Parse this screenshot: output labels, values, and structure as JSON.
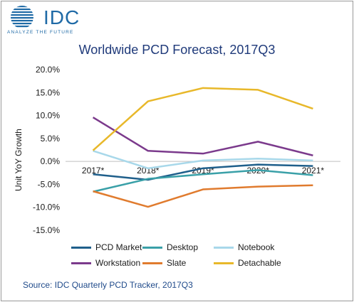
{
  "logo": {
    "brand": "IDC",
    "tagline": "ANALYZE THE FUTURE"
  },
  "source": "Source: IDC Quarterly PCD Tracker, 2017Q3",
  "chart_data": {
    "type": "line",
    "title": "Worldwide  PCD Forecast, 2017Q3",
    "ylabel": "Unit YoY Growth",
    "xlabel": "",
    "categories": [
      "2017*",
      "2018*",
      "2019*",
      "2020*",
      "2021*"
    ],
    "ylim": [
      -15,
      20
    ],
    "yticks": [
      -15,
      -10,
      -5,
      0,
      5,
      10,
      15,
      20
    ],
    "ytick_labels": [
      "-15.0%",
      "-10.0%",
      "-5.0%",
      "0.0%",
      "5.0%",
      "10.0%",
      "15.0%",
      "20.0%"
    ],
    "grid": false,
    "legend_position": "bottom",
    "series": [
      {
        "name": "PCD Market",
        "color": "#1f5f8b",
        "values": [
          -2.8,
          -4.0,
          -1.5,
          -0.7,
          -1.0
        ]
      },
      {
        "name": "Desktop",
        "color": "#3aa0a8",
        "values": [
          -6.6,
          -3.8,
          -2.8,
          -1.9,
          -3.0
        ]
      },
      {
        "name": "Notebook",
        "color": "#a8d8ea",
        "values": [
          2.3,
          -1.5,
          0.2,
          0.6,
          0.2
        ]
      },
      {
        "name": "Workstation",
        "color": "#7b3a8c",
        "values": [
          9.6,
          2.3,
          1.7,
          4.3,
          1.3
        ]
      },
      {
        "name": "Slate",
        "color": "#e07b2e",
        "values": [
          -6.5,
          -9.9,
          -6.1,
          -5.5,
          -5.2
        ]
      },
      {
        "name": "Detachable",
        "color": "#e8b82a",
        "values": [
          2.4,
          13.1,
          16.0,
          15.6,
          11.5
        ]
      }
    ]
  }
}
